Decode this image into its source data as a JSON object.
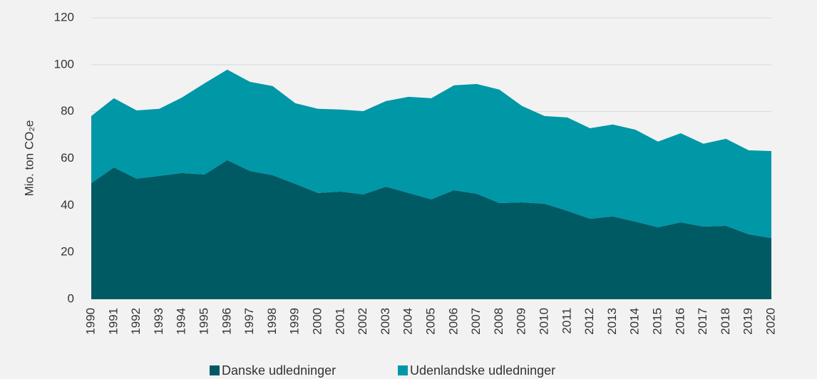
{
  "chart_data": {
    "type": "stacked_area",
    "y_label": "Mio. ton CO₂e",
    "categories": [
      "1990",
      "1991",
      "1992",
      "1993",
      "1994",
      "1995",
      "1996",
      "1997",
      "1998",
      "1999",
      "2000",
      "2001",
      "2002",
      "2003",
      "2004",
      "2005",
      "2006",
      "2007",
      "2008",
      "2009",
      "2010",
      "2011",
      "2012",
      "2013",
      "2014",
      "2015",
      "2016",
      "2017",
      "2018",
      "2019",
      "2020"
    ],
    "series": [
      {
        "name": "Danske udledninger",
        "color": "#005a64",
        "values": [
          49.5,
          56.2,
          51.4,
          52.6,
          53.8,
          53.2,
          59.3,
          54.7,
          52.9,
          49.2,
          45.3,
          45.9,
          44.7,
          48,
          45.3,
          42.6,
          46.5,
          45,
          41,
          41.3,
          40.7,
          37.7,
          34.3,
          35.3,
          33.1,
          30.7,
          32.8,
          31,
          31.3,
          27.7,
          26.1
        ]
      },
      {
        "name": "Udenlandske udledninger",
        "color": "#0097a7",
        "values": [
          28.6,
          29.5,
          29.1,
          28.6,
          32.2,
          38.9,
          38.6,
          38,
          38,
          34.4,
          35.9,
          35,
          35.5,
          36.5,
          41,
          43.1,
          44.7,
          46.8,
          48.4,
          41.1,
          37.4,
          39.8,
          38.6,
          39.2,
          39.2,
          36.5,
          38,
          35.3,
          37.1,
          35.8,
          37.1
        ]
      }
    ],
    "ylim": [
      0,
      120
    ],
    "yticks": [
      0,
      20,
      40,
      60,
      80,
      100,
      120
    ],
    "grid": true
  }
}
